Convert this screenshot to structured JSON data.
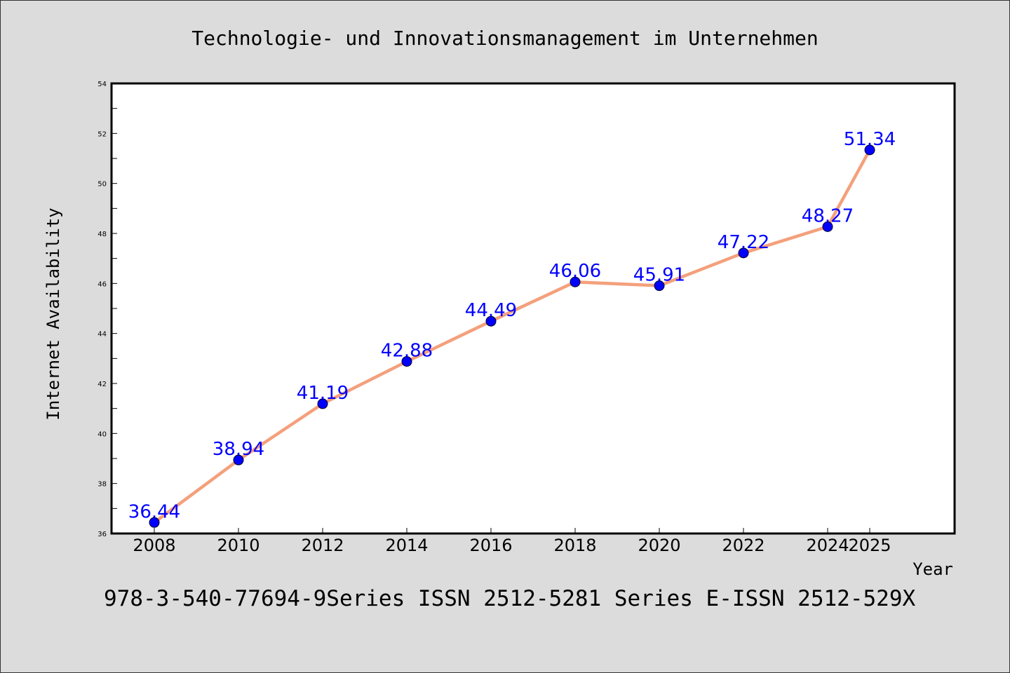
{
  "chart_data": {
    "type": "line",
    "title": "Technologie- und Innovationsmanagement im Unternehmen",
    "xlabel": "Year",
    "ylabel": "Internet Availability",
    "x": [
      "2008",
      "2010",
      "2012",
      "2014",
      "2016",
      "2018",
      "2020",
      "2022",
      "2024",
      "2025"
    ],
    "values": [
      36.44,
      38.94,
      41.19,
      42.88,
      44.49,
      46.06,
      45.91,
      47.22,
      48.27,
      51.34
    ],
    "value_labels": [
      "36.44",
      "38.94",
      "41.19",
      "42.88",
      "44.49",
      "46.06",
      "45.91",
      "47.22",
      "48.27",
      "51.34"
    ],
    "yticks": [
      "36",
      "38",
      "40",
      "42",
      "44",
      "46",
      "48",
      "50",
      "52",
      "54"
    ],
    "ylim": [
      36,
      54
    ],
    "grid": false,
    "line_color": "#f4a07c",
    "marker_color": "#0000ff",
    "label_color": "#0000ff"
  },
  "footer": {
    "text": "978-3-540-77694-9Series ISSN 2512-5281 Series E-ISSN 2512-529X"
  }
}
